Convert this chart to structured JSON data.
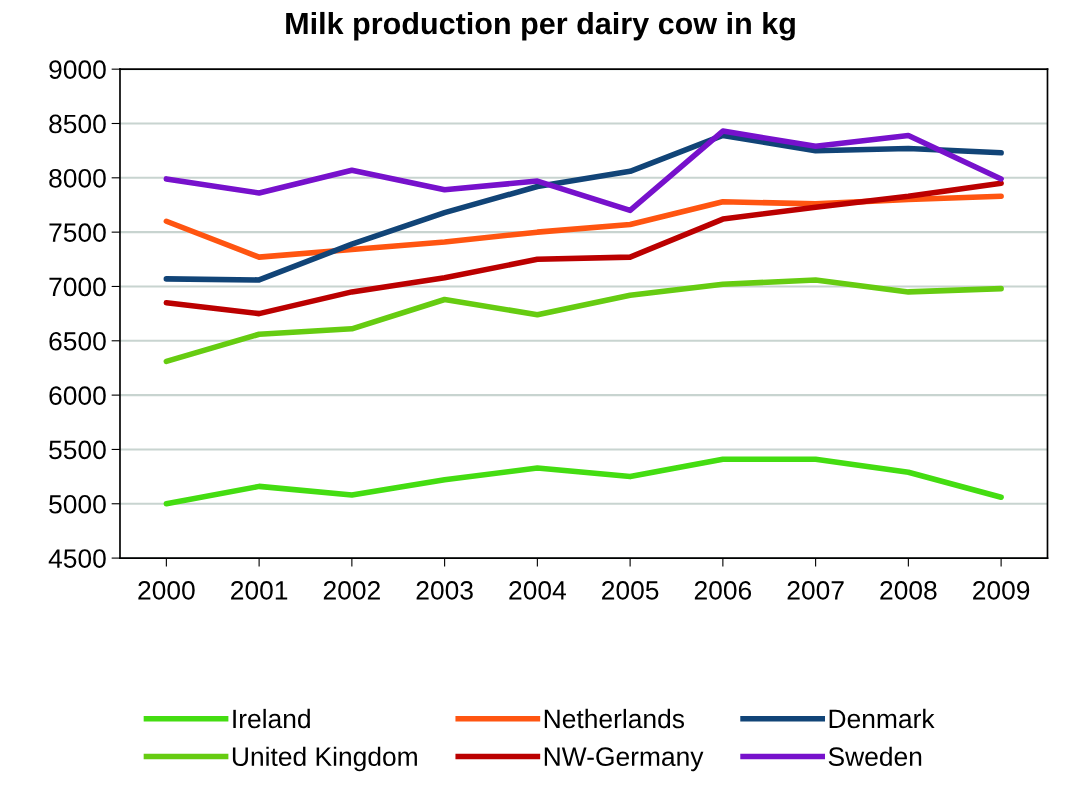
{
  "chart_data": {
    "type": "line",
    "title": "Milk production per dairy cow in kg",
    "categories": [
      "2000",
      "2001",
      "2002",
      "2003",
      "2004",
      "2005",
      "2006",
      "2007",
      "2008",
      "2009"
    ],
    "series": [
      {
        "name": "Ireland",
        "color": "#44dd11",
        "values": [
          5000,
          5160,
          5080,
          5220,
          5330,
          5250,
          5410,
          5410,
          5290,
          5060
        ]
      },
      {
        "name": "United Kingdom",
        "color": "#66cc11",
        "values": [
          6310,
          6560,
          6610,
          6880,
          6740,
          6920,
          7020,
          7060,
          6950,
          6980
        ]
      },
      {
        "name": "Netherlands",
        "color": "#ff5511",
        "values": [
          7600,
          7270,
          7340,
          7410,
          7500,
          7570,
          7780,
          7760,
          7800,
          7830
        ]
      },
      {
        "name": "NW-Germany",
        "color": "#bb0000",
        "values": [
          6850,
          6750,
          6950,
          7080,
          7250,
          7270,
          7620,
          7730,
          7830,
          7950
        ]
      },
      {
        "name": "Denmark",
        "color": "#114477",
        "values": [
          7070,
          7060,
          7390,
          7680,
          7920,
          8060,
          8390,
          8250,
          8270,
          8230
        ]
      },
      {
        "name": "Sweden",
        "color": "#7711cc",
        "values": [
          7990,
          7860,
          8070,
          7890,
          7970,
          7700,
          8430,
          8290,
          8390,
          7990
        ]
      }
    ],
    "ylim": [
      4500,
      9000
    ],
    "yticks": [
      4500,
      5000,
      5500,
      6000,
      6500,
      7000,
      7500,
      8000,
      8500,
      9000
    ],
    "grid": "y",
    "legend": "bottom",
    "marker": "none",
    "line_style": "solid"
  }
}
